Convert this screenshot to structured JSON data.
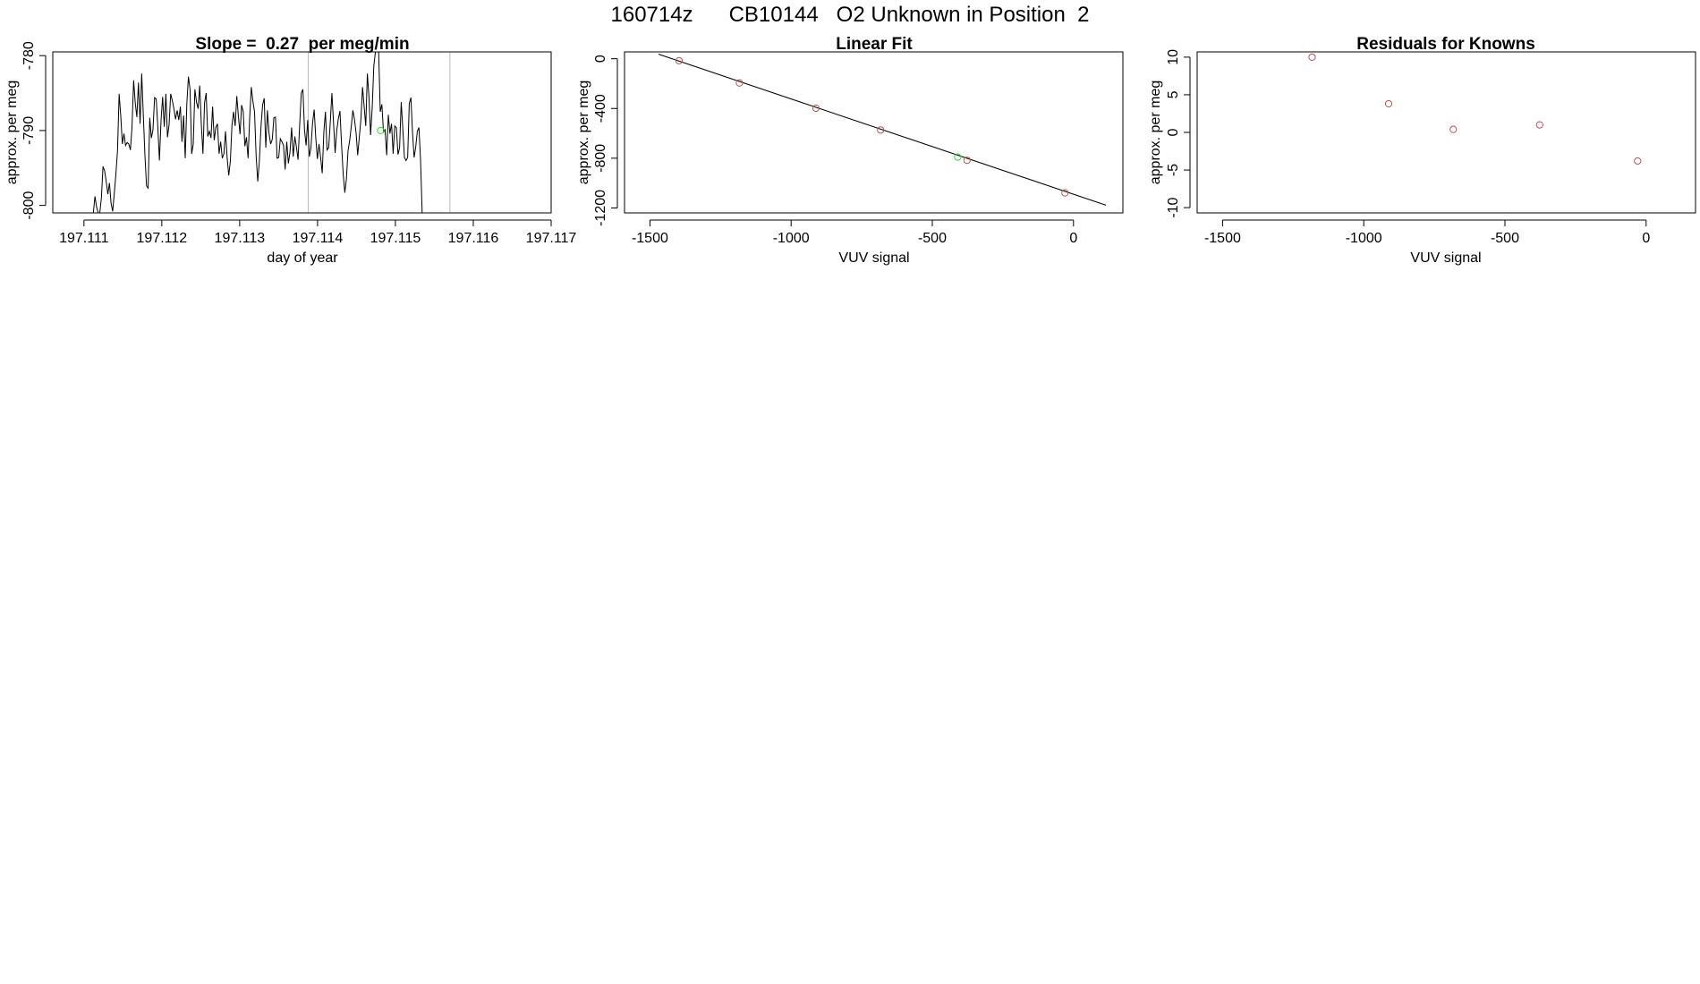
{
  "main_title": "160714z      CB10144   O2 Unknown in Position  2",
  "chart_data": [
    {
      "type": "line",
      "title": "Slope =  0.27  per meg/min",
      "xlabel": "day of year",
      "ylabel": "approx. per meg",
      "xlim": [
        197.1106,
        197.117
      ],
      "ylim": [
        -801,
        -779.5
      ],
      "xticks": [
        "197.111",
        "197.112",
        "197.113",
        "197.114",
        "197.115",
        "197.116",
        "197.117"
      ],
      "yticks": [
        "-780",
        "-790",
        "-800"
      ],
      "vlines": [
        197.11388,
        197.1157
      ],
      "x_start": 197.1111,
      "x_step": 2.07e-05,
      "y": [
        -803.4,
        -801.4,
        -798.8,
        -800.2,
        -802.8,
        -806.2,
        -799.0,
        -794.8,
        -795.4,
        -796.8,
        -798.5,
        -797.0,
        -799.7,
        -800.8,
        -798.4,
        -795.8,
        -792.7,
        -785.1,
        -788.0,
        -791.8,
        -790.4,
        -792.0,
        -791.6,
        -791.8,
        -792.6,
        -789.5,
        -783.3,
        -786.3,
        -788.2,
        -783.6,
        -789.1,
        -782.4,
        -787.9,
        -793.3,
        -797.4,
        -797.7,
        -788.3,
        -791.0,
        -789.9,
        -785.6,
        -785.8,
        -789.5,
        -794.0,
        -788.7,
        -785.5,
        -789.5,
        -785.1,
        -790.9,
        -789.2,
        -785.1,
        -786.0,
        -787.1,
        -788.5,
        -787.3,
        -788.6,
        -786.8,
        -791.5,
        -788.0,
        -793.7,
        -786.4,
        -782.8,
        -784.5,
        -793.1,
        -791.8,
        -784.5,
        -786.2,
        -787.1,
        -784.0,
        -789.2,
        -793.1,
        -786.3,
        -785.0,
        -790.8,
        -790.1,
        -791.0,
        -786.8,
        -791.3,
        -789.6,
        -789.1,
        -793.1,
        -791.5,
        -793.7,
        -793.1,
        -790.1,
        -793.6,
        -796.0,
        -794.1,
        -789.3,
        -787.5,
        -789.4,
        -785.4,
        -788.1,
        -790.5,
        -786.6,
        -787.5,
        -792.1,
        -790.9,
        -793.7,
        -788.3,
        -784.2,
        -786.1,
        -787.5,
        -793.4,
        -796.8,
        -794.1,
        -789.5,
        -786.6,
        -785.7,
        -792.3,
        -787.3,
        -790.4,
        -791.8,
        -791.2,
        -788.3,
        -788.2,
        -793.7,
        -793.6,
        -791.1,
        -791.5,
        -792.0,
        -795.2,
        -791.5,
        -794.4,
        -792.9,
        -789.6,
        -793.5,
        -790.8,
        -792.2,
        -793.9,
        -789.3,
        -785.0,
        -784.5,
        -789.9,
        -792.0,
        -788.6,
        -793.5,
        -792.3,
        -789.0,
        -787.2,
        -791.0,
        -793.8,
        -791.8,
        -793.6,
        -795.7,
        -790.2,
        -787.5,
        -792.6,
        -792.3,
        -788.9,
        -785.0,
        -788.9,
        -793.0,
        -790.0,
        -788.4,
        -787.4,
        -791.9,
        -795.8,
        -798.3,
        -796.5,
        -792.7,
        -791.4,
        -789.5,
        -787.3,
        -788.5,
        -790.3,
        -793.3,
        -790.9,
        -788.5,
        -784.2,
        -786.8,
        -789.4,
        -782.4,
        -785.5,
        -790.6,
        -787.0,
        -781.4,
        -778.8,
        -774.6,
        -779.2,
        -787.5,
        -786.5,
        -790.2,
        -789.9,
        -793.3,
        -787.9,
        -790.4,
        -789.1,
        -793.1,
        -789.4,
        -789.6,
        -793.2,
        -792.3,
        -786.2,
        -789.8,
        -793.6,
        -794.0,
        -793.6,
        -786.4,
        -785.6,
        -790.2,
        -793.6,
        -792.2,
        -790.1,
        -789.6,
        -793.9,
        -807.4
      ],
      "highlight": {
        "x": 197.11481,
        "y": -790.0
      }
    },
    {
      "type": "scatter",
      "title": "Linear Fit",
      "xlabel": "VUV signal",
      "ylabel": "approx. per meg",
      "xlim": [
        -1590,
        175
      ],
      "ylim": [
        -1240,
        55
      ],
      "xticks": [
        "-1500",
        "-1000",
        "-500",
        "0"
      ],
      "xtick_values": [
        -1500,
        -1000,
        -500,
        0
      ],
      "yticks": [
        "0",
        "-400",
        "-800",
        "-1200"
      ],
      "ytick_values": [
        0,
        -400,
        -800,
        -1200
      ],
      "points_x": [
        -1397,
        -1183,
        -912,
        -683,
        -377,
        -30
      ],
      "points_y": [
        -16,
        -195,
        -398,
        -573,
        -817,
        -1079
      ],
      "fit_line": {
        "x": [
          -1470,
          115
        ],
        "y": [
          37,
          -1178
        ]
      },
      "highlight": {
        "x": -410,
        "y": -791
      }
    },
    {
      "type": "scatter",
      "title": "Residuals for Knowns",
      "xlabel": "VUV signal",
      "ylabel": "approx. per meg",
      "xlim": [
        -1590,
        175
      ],
      "ylim": [
        -10.7,
        10.7
      ],
      "xticks": [
        "-1500",
        "-1000",
        "-500",
        "0"
      ],
      "xtick_values": [
        -1500,
        -1000,
        -500,
        0
      ],
      "yticks": [
        "10",
        "5",
        "0",
        "-5",
        "-10"
      ],
      "ytick_values": [
        10,
        5,
        0,
        -5,
        -10
      ],
      "points_x": [
        -1183,
        -912,
        -683,
        -377,
        -30
      ],
      "points_y": [
        10.0,
        3.8,
        0.4,
        1.0,
        -3.8
      ]
    }
  ],
  "colors": {
    "axes": "#000000",
    "series": "#000000",
    "points": "#c0504d",
    "highlight": "#33dd33",
    "vline": "#bbbbbb"
  }
}
